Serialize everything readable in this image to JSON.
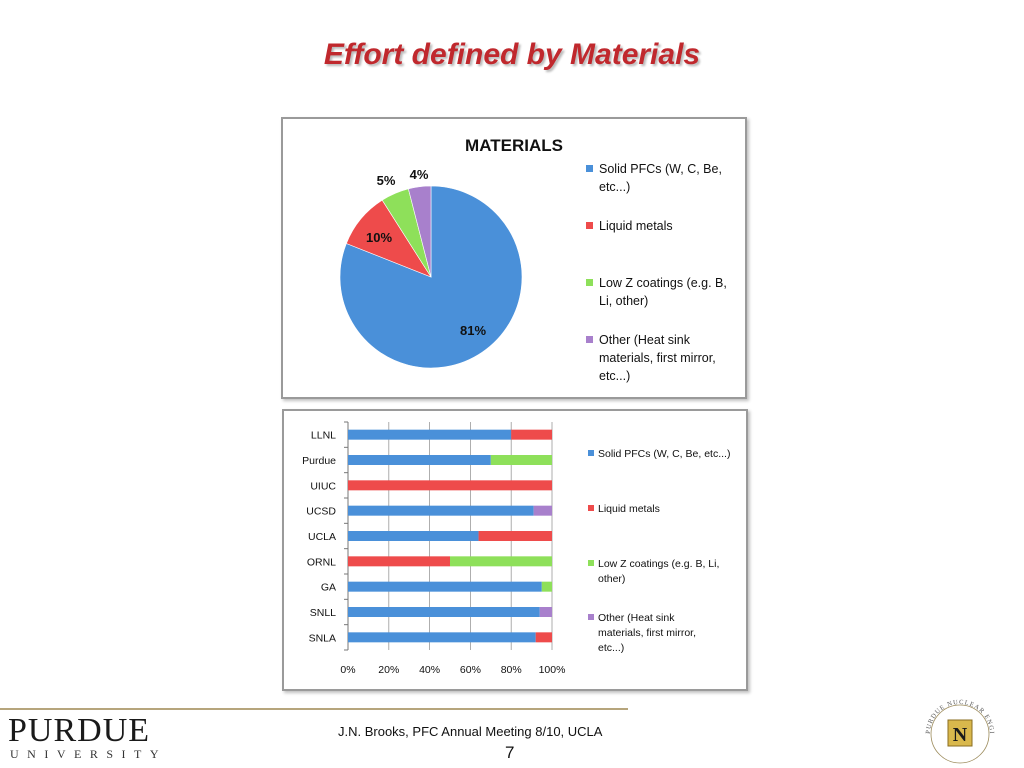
{
  "slide": {
    "title": "Effort defined by Materials",
    "footer": "J.N. Brooks, PFC Annual Meeting 8/10, UCLA",
    "page_number": "7",
    "logo_word": "PURDUE",
    "logo_sub": "UNIVERSITY",
    "seal_text": "PURDUE NUCLEAR ENGINEERING"
  },
  "chart_data": [
    {
      "type": "pie",
      "title": "MATERIALS",
      "legend_position": "right",
      "slices": [
        {
          "label": "Solid PFCs (W, C, Be, etc...)",
          "legend_lines": [
            "Solid PFCs (W, C, Be,",
            "etc...)"
          ],
          "value": 81,
          "value_label": "81%",
          "color": "#4a90d9"
        },
        {
          "label": "Liquid metals",
          "legend_lines": [
            "Liquid metals"
          ],
          "value": 10,
          "value_label": "10%",
          "color": "#ee4b4b"
        },
        {
          "label": "Low Z coatings (e.g. B, Li, other)",
          "legend_lines": [
            "Low Z coatings (e.g. B,",
            "Li, other)"
          ],
          "value": 5,
          "value_label": "5%",
          "color": "#8ee05a"
        },
        {
          "label": "Other (Heat sink materials, first mirror, etc...)",
          "legend_lines": [
            "Other (Heat sink",
            "materials, first mirror,",
            "etc...)"
          ],
          "value": 4,
          "value_label": "4%",
          "color": "#a880cc"
        }
      ]
    },
    {
      "type": "bar",
      "orientation": "horizontal",
      "stacked": true,
      "legend_position": "right",
      "categories": [
        "LLNL",
        "Purdue",
        "UIUC",
        "UCSD",
        "UCLA",
        "ORNL",
        "GA",
        "SNLL",
        "SNLA"
      ],
      "xlim": [
        0,
        100
      ],
      "xticks": [
        "0%",
        "20%",
        "40%",
        "60%",
        "80%",
        "100%"
      ],
      "grid": true,
      "series": [
        {
          "name": "Solid PFCs (W, C, Be, etc...)",
          "legend_lines": [
            "Solid PFCs (W, C, Be, etc...)"
          ],
          "color": "#4a90d9",
          "values": [
            80,
            70,
            0,
            91,
            64,
            0,
            95,
            94,
            92
          ]
        },
        {
          "name": "Liquid metals",
          "legend_lines": [
            "Liquid metals"
          ],
          "color": "#ee4b4b",
          "values": [
            20,
            0,
            100,
            0,
            36,
            50,
            0,
            0,
            8
          ]
        },
        {
          "name": "Low Z coatings (e.g. B, Li, other)",
          "legend_lines": [
            "Low Z coatings (e.g. B, Li,",
            "other)"
          ],
          "color": "#8ee05a",
          "values": [
            0,
            30,
            0,
            0,
            0,
            50,
            5,
            0,
            0
          ]
        },
        {
          "name": "Other (Heat sink materials, first mirror, etc...)",
          "legend_lines": [
            "Other (Heat sink",
            "materials, first mirror,",
            "etc...)"
          ],
          "color": "#a880cc",
          "values": [
            0,
            0,
            0,
            9,
            0,
            0,
            0,
            6,
            0
          ]
        }
      ]
    }
  ]
}
